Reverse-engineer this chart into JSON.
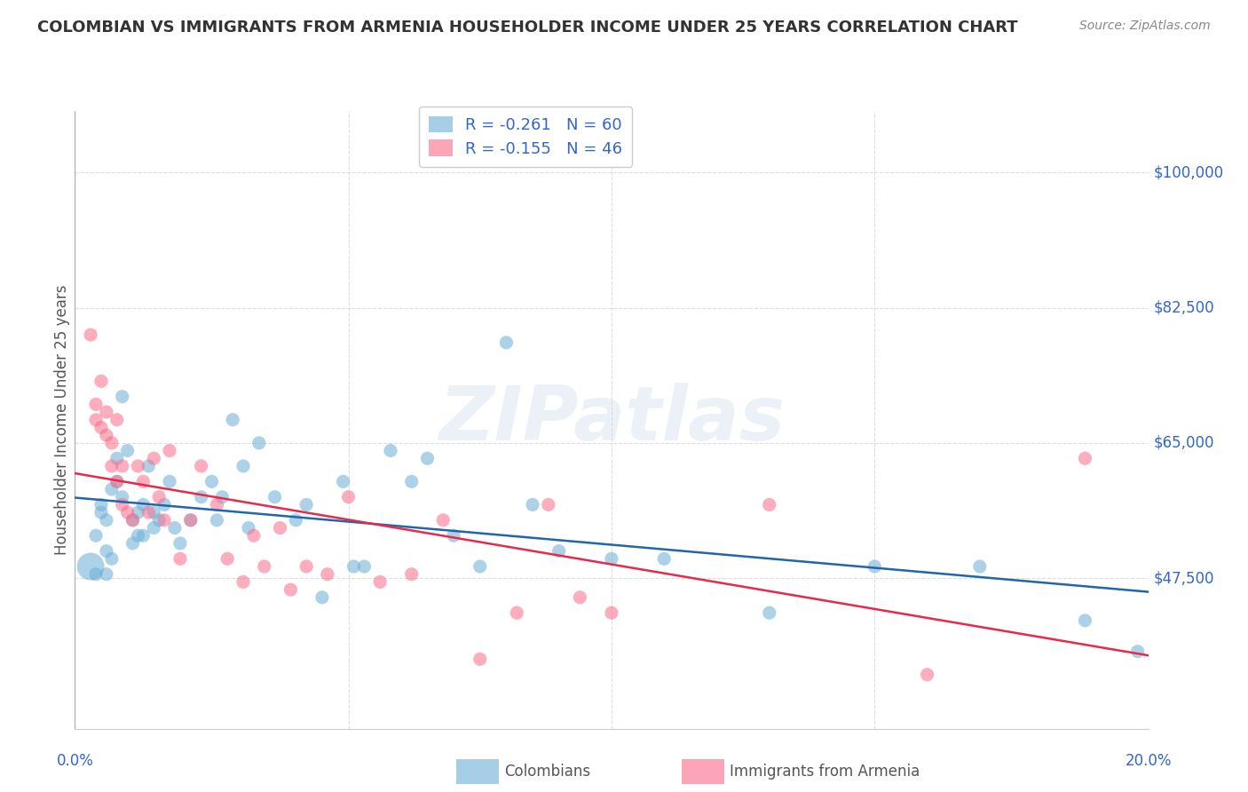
{
  "title": "COLOMBIAN VS IMMIGRANTS FROM ARMENIA HOUSEHOLDER INCOME UNDER 25 YEARS CORRELATION CHART",
  "source": "Source: ZipAtlas.com",
  "ylabel": "Householder Income Under 25 years",
  "ytick_labels": [
    "$100,000",
    "$82,500",
    "$65,000",
    "$47,500"
  ],
  "ytick_values": [
    100000,
    82500,
    65000,
    47500
  ],
  "ylim": [
    28000,
    108000
  ],
  "xlim": [
    -0.002,
    0.202
  ],
  "colombian_color": "#6baed6",
  "armenia_color": "#fb6a8a",
  "trendline_colombian_color": "#2166ac",
  "trendline_armenia_color": "#e8294a",
  "watermark": "ZIPatlas",
  "colombians_x": [
    0.001,
    0.002,
    0.002,
    0.003,
    0.003,
    0.004,
    0.004,
    0.004,
    0.005,
    0.005,
    0.006,
    0.006,
    0.007,
    0.007,
    0.008,
    0.009,
    0.009,
    0.01,
    0.01,
    0.011,
    0.011,
    0.012,
    0.013,
    0.013,
    0.014,
    0.015,
    0.016,
    0.017,
    0.018,
    0.02,
    0.022,
    0.024,
    0.025,
    0.026,
    0.028,
    0.03,
    0.031,
    0.033,
    0.036,
    0.04,
    0.042,
    0.045,
    0.049,
    0.051,
    0.053,
    0.058,
    0.062,
    0.065,
    0.07,
    0.075,
    0.08,
    0.085,
    0.09,
    0.1,
    0.11,
    0.13,
    0.15,
    0.17,
    0.19,
    0.2
  ],
  "colombians_y": [
    49000,
    53000,
    48000,
    56000,
    57000,
    51000,
    55000,
    48000,
    59000,
    50000,
    60000,
    63000,
    71000,
    58000,
    64000,
    55000,
    52000,
    56000,
    53000,
    57000,
    53000,
    62000,
    54000,
    56000,
    55000,
    57000,
    60000,
    54000,
    52000,
    55000,
    58000,
    60000,
    55000,
    58000,
    68000,
    62000,
    54000,
    65000,
    58000,
    55000,
    57000,
    45000,
    60000,
    49000,
    49000,
    64000,
    60000,
    63000,
    53000,
    49000,
    78000,
    57000,
    51000,
    50000,
    50000,
    43000,
    49000,
    49000,
    42000,
    38000
  ],
  "colombians_size": [
    500,
    120,
    120,
    120,
    120,
    120,
    120,
    120,
    120,
    120,
    120,
    120,
    120,
    120,
    120,
    120,
    120,
    120,
    120,
    120,
    120,
    120,
    120,
    120,
    120,
    120,
    120,
    120,
    120,
    120,
    120,
    120,
    120,
    120,
    120,
    120,
    120,
    120,
    120,
    120,
    120,
    120,
    120,
    120,
    120,
    120,
    120,
    120,
    120,
    120,
    120,
    120,
    120,
    120,
    120,
    120,
    120,
    120,
    120,
    120
  ],
  "armenia_x": [
    0.001,
    0.002,
    0.002,
    0.003,
    0.003,
    0.004,
    0.004,
    0.005,
    0.005,
    0.006,
    0.006,
    0.007,
    0.007,
    0.008,
    0.009,
    0.01,
    0.011,
    0.012,
    0.013,
    0.014,
    0.015,
    0.016,
    0.018,
    0.02,
    0.022,
    0.025,
    0.027,
    0.03,
    0.032,
    0.034,
    0.037,
    0.039,
    0.042,
    0.046,
    0.05,
    0.056,
    0.062,
    0.068,
    0.075,
    0.082,
    0.088,
    0.094,
    0.1,
    0.13,
    0.16,
    0.19
  ],
  "armenia_y": [
    79000,
    70000,
    68000,
    67000,
    73000,
    69000,
    66000,
    65000,
    62000,
    60000,
    68000,
    57000,
    62000,
    56000,
    55000,
    62000,
    60000,
    56000,
    63000,
    58000,
    55000,
    64000,
    50000,
    55000,
    62000,
    57000,
    50000,
    47000,
    53000,
    49000,
    54000,
    46000,
    49000,
    48000,
    58000,
    47000,
    48000,
    55000,
    37000,
    43000,
    57000,
    45000,
    43000,
    57000,
    35000,
    63000
  ],
  "armenia_size": [
    120,
    120,
    120,
    120,
    120,
    120,
    120,
    120,
    120,
    120,
    120,
    120,
    120,
    120,
    120,
    120,
    120,
    120,
    120,
    120,
    120,
    120,
    120,
    120,
    120,
    120,
    120,
    120,
    120,
    120,
    120,
    120,
    120,
    120,
    120,
    120,
    120,
    120,
    120,
    120,
    120,
    120,
    120,
    120,
    120,
    120
  ],
  "background_color": "#ffffff",
  "grid_color": "#dddddd",
  "title_color": "#333333",
  "tick_label_color": "#3366cc",
  "legend_col_r": "R = -0.261",
  "legend_col_n": "N = 60",
  "legend_arm_r": "R = -0.155",
  "legend_arm_n": "N = 46"
}
